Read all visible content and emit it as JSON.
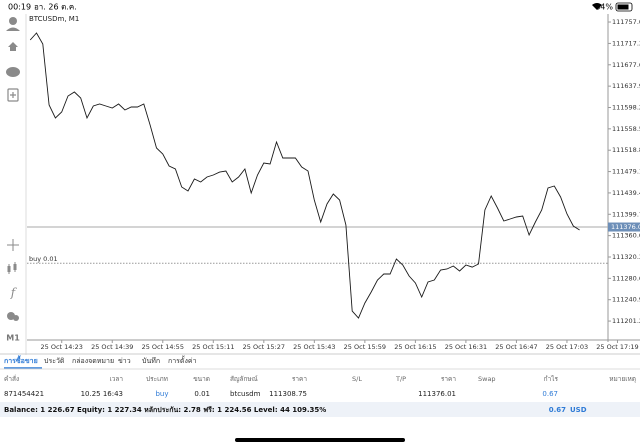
{
  "status_bar": {
    "time": "00:19",
    "date": "อา. 26 ต.ค.",
    "battery": "84%"
  },
  "toolbar": {
    "timeframe": "M1"
  },
  "chart_data": {
    "type": "line",
    "title": "BTCUSDm, M1",
    "color": "#1a1a1a",
    "x": [
      853,
      855,
      857,
      859,
      861,
      863,
      865,
      867,
      869,
      871,
      873,
      875,
      877,
      879,
      881,
      883,
      885,
      887,
      889,
      891,
      893,
      895,
      897,
      899,
      901,
      903,
      905,
      907,
      909,
      911,
      913,
      915,
      917,
      919,
      921,
      923,
      925,
      927,
      929,
      931,
      933,
      935,
      937,
      939,
      941,
      943,
      945,
      947,
      949,
      951,
      953,
      955,
      957,
      959,
      961,
      963,
      965,
      967,
      969,
      971,
      973,
      975,
      977,
      979,
      981,
      983,
      985,
      987,
      989,
      991,
      993,
      995,
      997,
      999,
      1001,
      1003,
      1005,
      1007,
      1009,
      1011,
      1013,
      1015,
      1017,
      1019,
      1021,
      1023,
      1025,
      1027
    ],
    "values": [
      111723.6,
      111736.6,
      111716.2,
      111602.8,
      111578.6,
      111589.8,
      111619.5,
      111627.0,
      111615.8,
      111578.6,
      111600.9,
      111604.7,
      111600.9,
      111597.2,
      111604.7,
      111593.5,
      111599.1,
      111599.1,
      111604.7,
      111565.6,
      111522.9,
      111511.7,
      111489.4,
      111483.8,
      111450.4,
      111442.9,
      111465.2,
      111459.7,
      111469.0,
      111472.7,
      111478.2,
      111480.1,
      111459.7,
      111469.0,
      111483.8,
      111439.2,
      111472.7,
      111495.0,
      111493.1,
      111534.0,
      111504.3,
      111504.3,
      111504.3,
      111487.5,
      111480.1,
      111426.2,
      111385.3,
      111418.8,
      111437.4,
      111426.2,
      111379.7,
      111219.8,
      111206.8,
      111234.7,
      111255.2,
      111277.5,
      111288.6,
      111288.6,
      111316.5,
      111305.4,
      111284.9,
      111271.9,
      111245.9,
      111273.8,
      111277.5,
      111296.1,
      111297.9,
      111303.5,
      111294.2,
      111305.4,
      111301.6,
      111307.2,
      111407.6,
      111433.6,
      111411.3,
      111387.2,
      111390.9,
      111394.6,
      111396.5,
      111361.1,
      111385.3,
      111407.6,
      111448.5,
      111452.2,
      111431.8,
      111400.2,
      111377.9,
      111370.4
    ],
    "xlim": [
      852,
      1036
    ],
    "xticks": [
      {
        "value": 863,
        "label": "25 Oct 14:23"
      },
      {
        "value": 879,
        "label": "25 Oct 14:39"
      },
      {
        "value": 895,
        "label": "25 Oct 14:55"
      },
      {
        "value": 911,
        "label": "25 Oct 15:11"
      },
      {
        "value": 927,
        "label": "25 Oct 15:27"
      },
      {
        "value": 943,
        "label": "25 Oct 15:43"
      },
      {
        "value": 959,
        "label": "25 Oct 15:59"
      },
      {
        "value": 975,
        "label": "25 Oct 16:15"
      },
      {
        "value": 991,
        "label": "25 Oct 16:31"
      },
      {
        "value": 1007,
        "label": "25 Oct 16:47"
      },
      {
        "value": 1023,
        "label": "25 Oct 17:03"
      },
      {
        "value": 1039,
        "label": "25 Oct 17:19"
      }
    ],
    "ylim": [
      111166,
      111772
    ],
    "yticks": [
      111757.09,
      {
        "value": 111717.3,
        "label": "111717.30"
      },
      {
        "value": 111677.6,
        "label": "111677.60"
      },
      {
        "value": 111637.9,
        "label": "111637.90"
      },
      {
        "value": 111598.2,
        "label": "111598.20"
      },
      111558.51,
      {
        "value": 111518.8,
        "label": "111518.80"
      },
      {
        "value": 111479.1,
        "label": "111479.10"
      },
      {
        "value": 111439.4,
        "label": "111439.40"
      },
      {
        "value": 111399.7,
        "label": "111399.70"
      },
      {
        "value": 111360,
        "label": "111360.00"
      },
      {
        "value": 111320.3,
        "label": "111320.30"
      },
      {
        "value": 111280.6,
        "label": "111280.60"
      },
      {
        "value": 111240.9,
        "label": "111240.90"
      },
      {
        "value": 111201.2,
        "label": "111201.20"
      }
    ],
    "price_line": 111376.01,
    "order_line": {
      "value": 111308.75,
      "label": "buy 0.01"
    },
    "grid": false
  },
  "tabs": [
    "การซื้อขาย",
    "ประวัติ",
    "กล่องจดหมาย",
    "ข่าว",
    "บันทึก",
    "การตั้งค่า"
  ],
  "table": {
    "headers": [
      "คำสั่ง",
      "เวลา",
      "ประเภท",
      "ขนาด",
      "สัญลักษณ์",
      "ราคา",
      "S/L",
      "T/P",
      "ราคา",
      "Swap",
      "กำไร",
      "หมายเหตุ"
    ],
    "rows": [
      {
        "order": 871454421,
        "time": "10.25 16:43",
        "type": "buy",
        "volume": 0.01,
        "symbol": "btcusdm",
        "open_price": 111308.75,
        "price": 111376.01,
        "profit": 0.67
      }
    ]
  },
  "footer": {
    "summary": "Balance: 1 226.67 Equity: 1 227.34 หลักประกัน: 2.78 ฟรี: 1 224.56 Level: 44 109.35%",
    "profit": 0.67,
    "currency": "USD"
  }
}
